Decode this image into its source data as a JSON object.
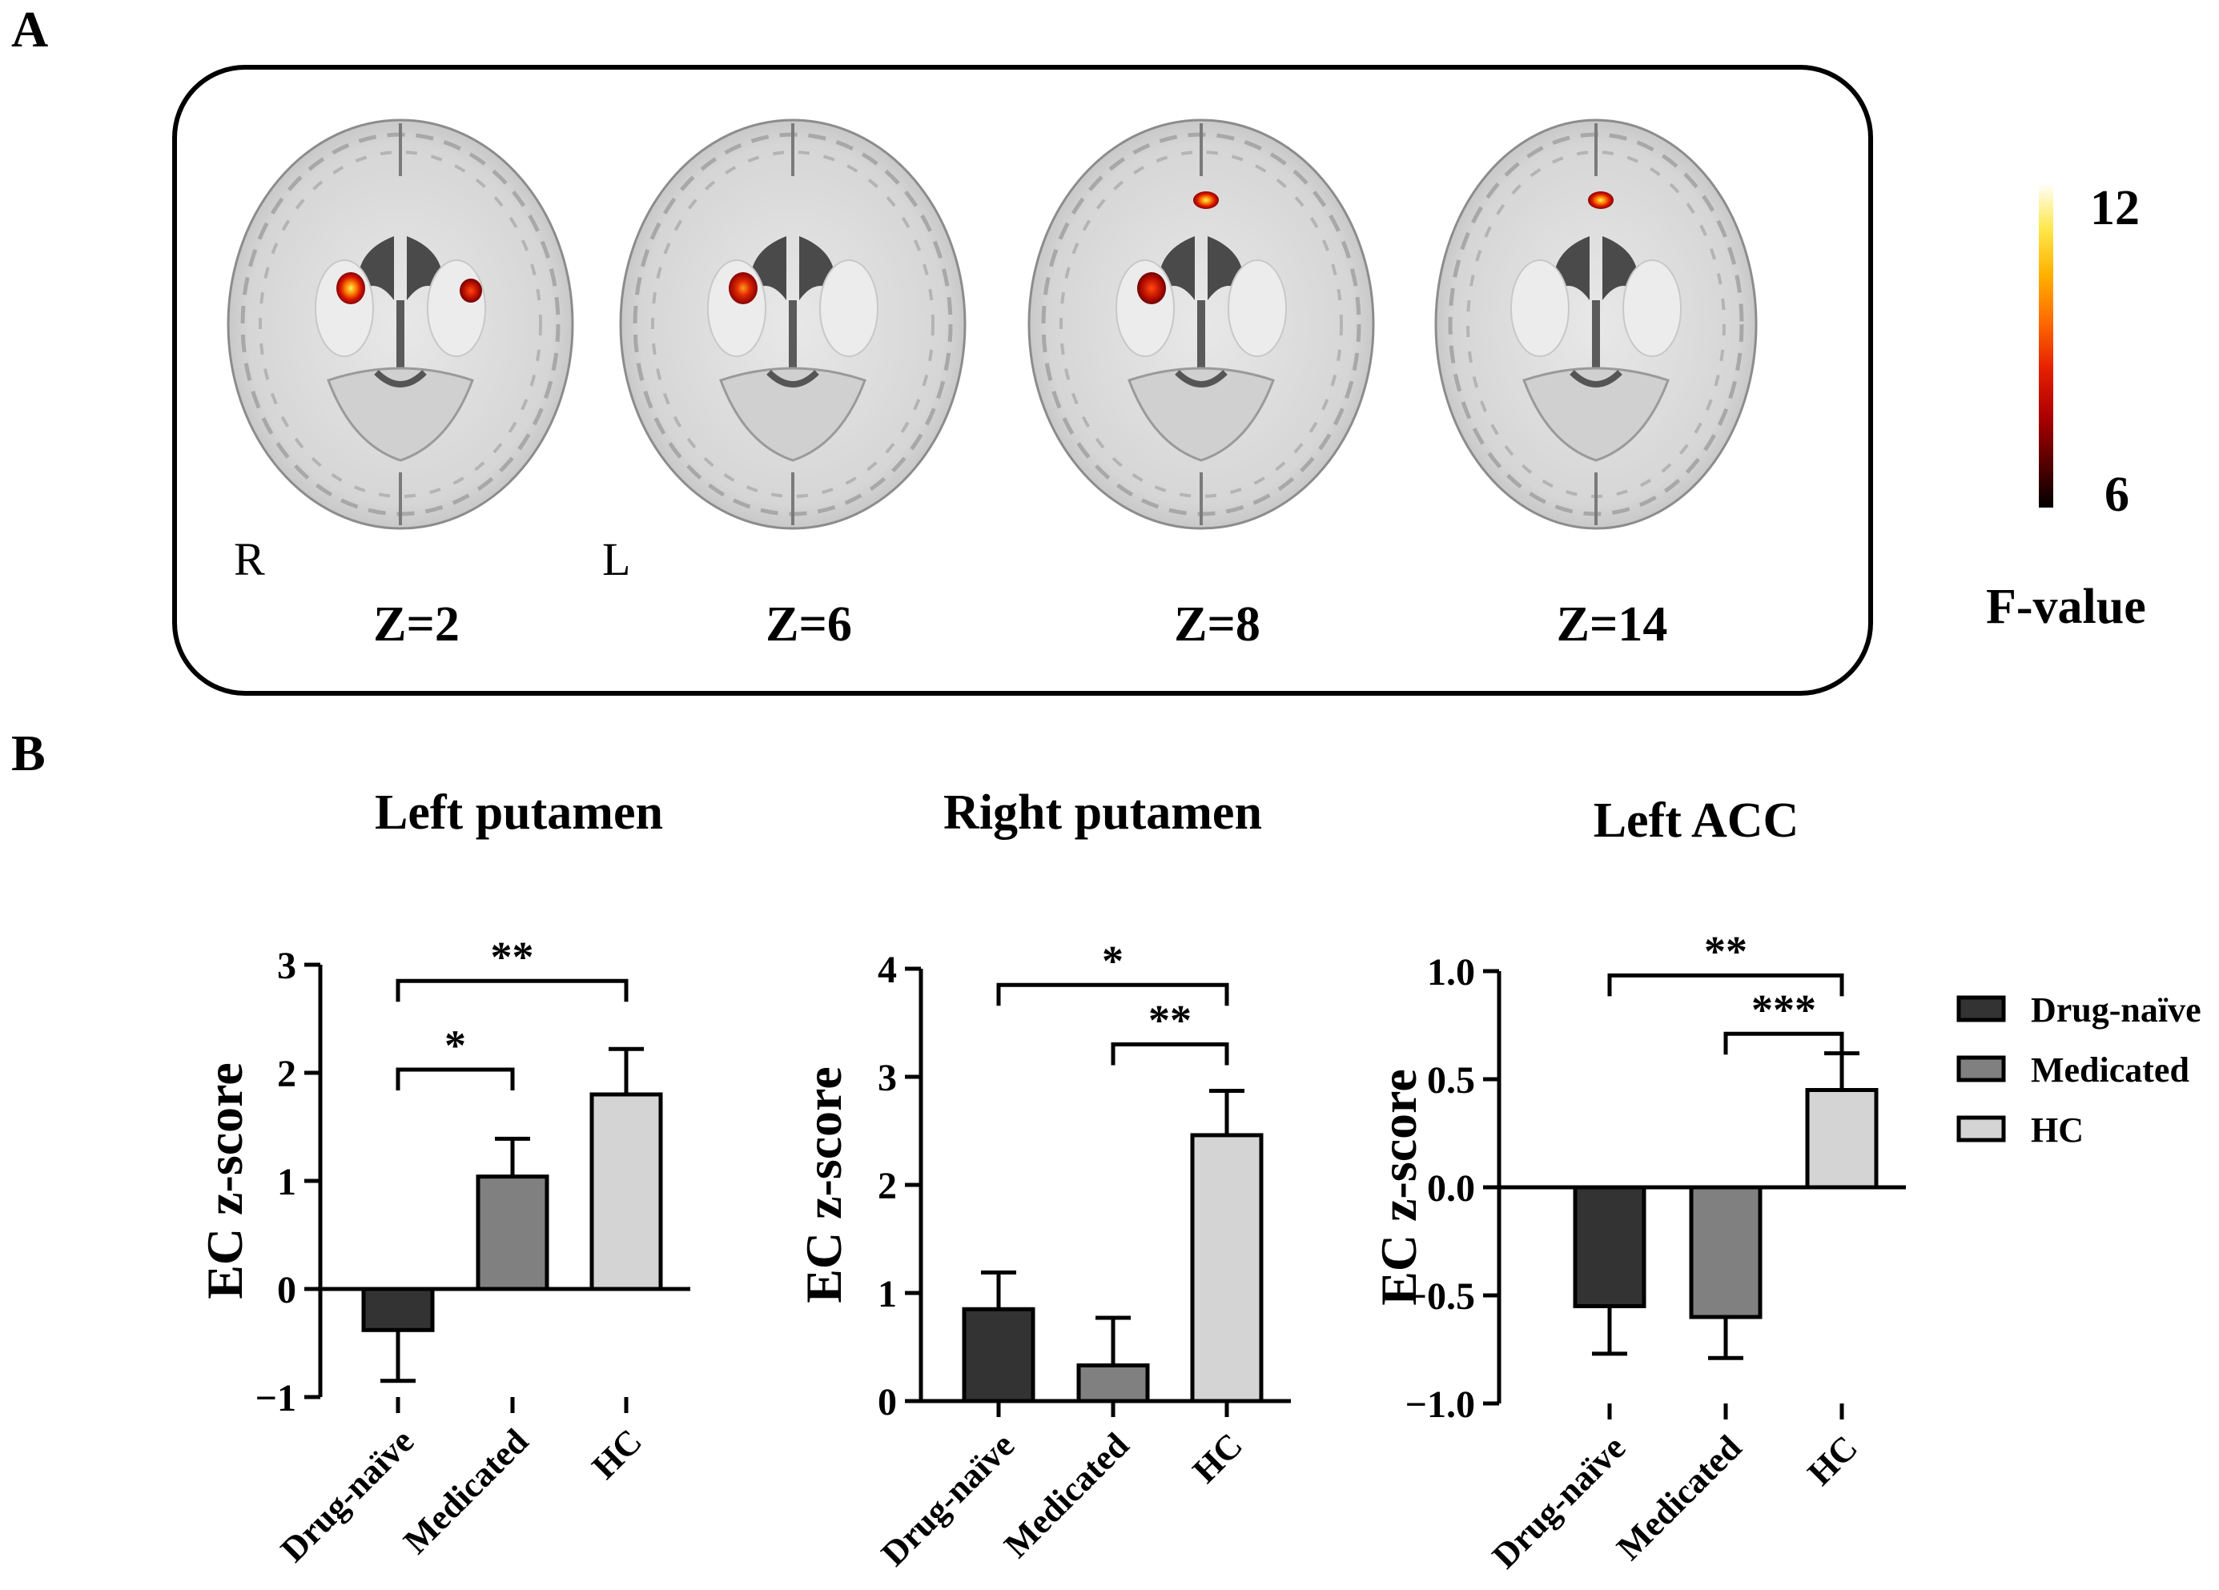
{
  "panel_a": {
    "label": "A",
    "orientation_left": "R",
    "orientation_right": "L",
    "slices": [
      {
        "z_label": "Z=2",
        "blobs": [
          {
            "side": "right-hemisphere",
            "intensity": 0.85
          },
          {
            "side": "left-hemisphere",
            "intensity": 0.6
          }
        ]
      },
      {
        "z_label": "Z=6",
        "blobs": [
          {
            "side": "right-hemisphere",
            "intensity": 0.75
          }
        ]
      },
      {
        "z_label": "Z=8",
        "blobs": [
          {
            "side": "right-hemisphere",
            "intensity": 0.5
          },
          {
            "side": "acc",
            "intensity": 0.95
          }
        ]
      },
      {
        "z_label": "Z=14",
        "blobs": [
          {
            "side": "acc",
            "intensity": 0.85
          }
        ]
      }
    ],
    "colorbar": {
      "max_label": "12",
      "min_label": "6",
      "title": "F-value",
      "range": [
        6,
        12
      ],
      "colors": [
        "#000000",
        "#5a0000",
        "#b00000",
        "#e62000",
        "#ff6a00",
        "#ffb000",
        "#ffe84a",
        "#ffffff"
      ]
    }
  },
  "panel_b": {
    "label": "B",
    "legend": [
      {
        "name": "Drug-naïve",
        "color": "#333333"
      },
      {
        "name": "Medicated",
        "color": "#808080"
      },
      {
        "name": "HC",
        "color": "#d4d4d4"
      }
    ]
  },
  "chart_data": [
    {
      "type": "bar",
      "title": "Left putamen",
      "ylabel": "EC z-score",
      "categories": [
        "Drug-naïve",
        "Medicated",
        "HC"
      ],
      "values": [
        -0.38,
        1.04,
        1.8
      ],
      "errors": [
        0.47,
        0.35,
        0.42
      ],
      "colors": [
        "#333333",
        "#808080",
        "#d4d4d4"
      ],
      "ylim": [
        -1,
        3
      ],
      "yticks": [
        -1,
        0,
        1,
        2,
        3
      ],
      "ytick_labels": [
        "−1",
        "0",
        "1",
        "2",
        "3"
      ],
      "significance": [
        {
          "from": 0,
          "to": 2,
          "label": "**",
          "y": 2.85
        },
        {
          "from": 0,
          "to": 1,
          "label": "*",
          "y": 2.03
        }
      ]
    },
    {
      "type": "bar",
      "title": "Right putamen",
      "ylabel": "EC z-score",
      "categories": [
        "Drug-naïve",
        "Medicated",
        "HC"
      ],
      "values": [
        0.85,
        0.33,
        2.46
      ],
      "errors": [
        0.34,
        0.44,
        0.41
      ],
      "colors": [
        "#333333",
        "#808080",
        "#d4d4d4"
      ],
      "ylim": [
        0,
        4
      ],
      "yticks": [
        0,
        1,
        2,
        3,
        4
      ],
      "ytick_labels": [
        "0",
        "1",
        "2",
        "3",
        "4"
      ],
      "significance": [
        {
          "from": 0,
          "to": 2,
          "label": "*",
          "y": 3.85
        },
        {
          "from": 1,
          "to": 2,
          "label": "**",
          "y": 3.3
        }
      ]
    },
    {
      "type": "bar",
      "title": "Left  ACC",
      "ylabel": "EC z-score",
      "categories": [
        "Drug-naïve",
        "Medicated",
        "HC"
      ],
      "values": [
        -0.55,
        -0.6,
        0.45
      ],
      "errors": [
        0.22,
        0.19,
        0.17
      ],
      "colors": [
        "#333333",
        "#808080",
        "#d4d4d4"
      ],
      "ylim": [
        -1.0,
        1.0
      ],
      "yticks": [
        -1.0,
        -0.5,
        0.0,
        0.5,
        1.0
      ],
      "ytick_labels": [
        "−1.0",
        "−0.5",
        "0.0",
        "0.5",
        "1.0"
      ],
      "significance": [
        {
          "from": 0,
          "to": 2,
          "label": "**",
          "y": 0.98
        },
        {
          "from": 1,
          "to": 2,
          "label": "***",
          "y": 0.71
        }
      ]
    }
  ]
}
